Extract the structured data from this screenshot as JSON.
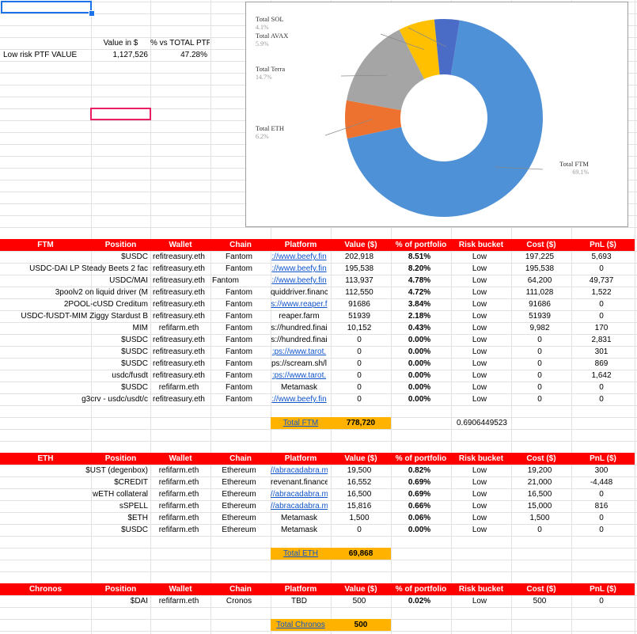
{
  "summary": {
    "value_header": "Value in $",
    "pct_header": "% vs TOTAL PTF",
    "row_label": "Low risk PTF VALUE",
    "value": "1,127,526",
    "pct": "47.28%"
  },
  "chart_data": {
    "type": "pie",
    "donut": true,
    "labels": [
      "Total FTM",
      "Total ETH",
      "Total Terra",
      "Total AVAX",
      "Total SOL"
    ],
    "values": [
      69.1,
      6.2,
      14.7,
      5.9,
      4.1
    ],
    "value_labels": [
      "69.1%",
      "6.2%",
      "14.7%",
      "5.9%",
      "4.1%"
    ],
    "colors": [
      "#4e91d6",
      "#ed7230",
      "#a5a5a5",
      "#ffc000",
      "#4a6cc7"
    ]
  },
  "headers": {
    "position": "Position",
    "wallet": "Wallet",
    "chain": "Chain",
    "platform": "Platform",
    "value": "Value ($)",
    "pct": "% of portfolio",
    "risk": "Risk bucket",
    "cost": "Cost ($)",
    "pnl": "PnL ($)"
  },
  "ftm": {
    "title": "FTM",
    "rows": [
      {
        "position": "$USDC",
        "wallet": "refitreasury.eth",
        "chain": "Fantom",
        "platform": "://www.beefy.fin",
        "link": true,
        "value": "202,918",
        "pct": "8.51%",
        "risk": "Low",
        "cost": "197,225",
        "pnl": "5,693"
      },
      {
        "position": "USDC-DAI LP Steady Beets 2 fac",
        "wallet": "refitreasury.eth",
        "chain": "Fantom",
        "platform": "://www.beefy.fin",
        "link": true,
        "value": "195,538",
        "pct": "8.20%",
        "risk": "Low",
        "cost": "195,538",
        "pnl": "0"
      },
      {
        "position": "USDC/MAI",
        "wallet": "refitreasury.eth",
        "chain": "Fantom",
        "chainLeft": true,
        "platform": "://www.beefy.fin",
        "link": true,
        "value": "113,937",
        "pct": "4.78%",
        "risk": "Low",
        "cost": "64,200",
        "pnl": "49,737"
      },
      {
        "position": "3poolv2 on liquid driver (M",
        "wallet": "refitreasury.eth",
        "chain": "Fantom",
        "platform": "quiddriver.financ",
        "link": false,
        "value": "112,550",
        "pct": "4.72%",
        "risk": "Low",
        "cost": "111,028",
        "pnl": "1,522"
      },
      {
        "position": "2POOL-cUSD Creditum",
        "wallet": "refitreasury.eth",
        "chain": "Fantom",
        "platform": "s://www.reaper.f",
        "link": true,
        "value": "91686",
        "pct": "3.84%",
        "risk": "Low",
        "cost": "91686",
        "pnl": "0"
      },
      {
        "position": "USDC-fUSDT-MIM Ziggy Stardust B",
        "wallet": "refitreasury.eth",
        "chain": "Fantom",
        "platform": "reaper.farm",
        "link": false,
        "value": "51939",
        "pct": "2.18%",
        "risk": "Low",
        "cost": "51939",
        "pnl": "0"
      },
      {
        "position": "MIM",
        "wallet": "refifarm.eth",
        "chain": "Fantom",
        "platform": "s://hundred.finai",
        "link": false,
        "value": "10,152",
        "pct": "0.43%",
        "risk": "Low",
        "cost": "9,982",
        "pnl": "170"
      },
      {
        "position": "$USDC",
        "wallet": "refitreasury.eth",
        "chain": "Fantom",
        "platform": "s://hundred.finai",
        "link": false,
        "value": "0",
        "pct": "0.00%",
        "risk": "Low",
        "cost": "0",
        "pnl": "2,831"
      },
      {
        "position": "$USDC",
        "wallet": "refitreasury.eth",
        "chain": "Fantom",
        "platform": ":ps://www.tarot.",
        "link": true,
        "value": "0",
        "pct": "0.00%",
        "risk": "Low",
        "cost": "0",
        "pnl": "301"
      },
      {
        "position": "$USDC",
        "wallet": "refitreasury.eth",
        "chain": "Fantom",
        "platform": "ps://scream.sh/l",
        "link": false,
        "value": "0",
        "pct": "0.00%",
        "risk": "Low",
        "cost": "0",
        "pnl": "869"
      },
      {
        "position": "usdc/fusdt",
        "wallet": "refitreasury.eth",
        "chain": "Fantom",
        "platform": ":ps://www.tarot.",
        "link": true,
        "value": "0",
        "pct": "0.00%",
        "risk": "Low",
        "cost": "0",
        "pnl": "1,642"
      },
      {
        "position": "$USDC",
        "wallet": "refifarm.eth",
        "chain": "Fantom",
        "platform": "Metamask",
        "link": false,
        "value": "0",
        "pct": "0.00%",
        "risk": "Low",
        "cost": "0",
        "pnl": "0"
      },
      {
        "position": "g3crv - usdc/usdt/c",
        "wallet": "refitreasury.eth",
        "chain": "Fantom",
        "platform": "://www.beefy.fin",
        "link": true,
        "value": "0",
        "pct": "0.00%",
        "risk": "Low",
        "cost": "0",
        "pnl": "0"
      }
    ],
    "total_label": "Total FTM",
    "total_value": "778,720",
    "extra": "0.6906449523"
  },
  "eth": {
    "title": "ETH",
    "rows": [
      {
        "position": "$UST (degenbox)",
        "wallet": "refifarm.eth",
        "chain": "Ethereum",
        "platform": "//abracadabra.m",
        "link": true,
        "value": "19,500",
        "pct": "0.82%",
        "risk": "Low",
        "cost": "19,200",
        "pnl": "300"
      },
      {
        "position": "$CREDIT",
        "wallet": "refifarm.eth",
        "chain": "Ethereum",
        "platform": "revenant.finance",
        "link": false,
        "value": "16,552",
        "pct": "0.69%",
        "risk": "Low",
        "cost": "21,000",
        "pnl": "-4,448"
      },
      {
        "position": "wETH collateral",
        "wallet": "refifarm.eth",
        "chain": "Ethereum",
        "platform": "//abracadabra.m",
        "link": true,
        "value": "16,500",
        "pct": "0.69%",
        "risk": "Low",
        "cost": "16,500",
        "pnl": "0"
      },
      {
        "position": "sSPELL",
        "wallet": "refifarm.eth",
        "chain": "Ethereum",
        "platform": "//abracadabra.m",
        "link": true,
        "value": "15,816",
        "pct": "0.66%",
        "risk": "Low",
        "cost": "15,000",
        "pnl": "816"
      },
      {
        "position": "$ETH",
        "wallet": "refifarm.eth",
        "chain": "Ethereum",
        "platform": "Metamask",
        "link": false,
        "value": "1,500",
        "pct": "0.06%",
        "risk": "Low",
        "cost": "1,500",
        "pnl": "0"
      },
      {
        "position": "$USDC",
        "wallet": "refifarm.eth",
        "chain": "Ethereum",
        "platform": "Metamask",
        "link": false,
        "value": "0",
        "pct": "0.00%",
        "risk": "Low",
        "cost": "0",
        "pnl": "0"
      }
    ],
    "total_label": "Total ETH",
    "total_value": "69,868"
  },
  "chronos": {
    "title": "Chronos",
    "rows": [
      {
        "position": "$DAI",
        "wallet": "refifarm.eth",
        "chain": "Cronos",
        "platform": "TBD",
        "link": false,
        "value": "500",
        "pct": "0.02%",
        "risk": "Low",
        "cost": "500",
        "pnl": "0"
      }
    ],
    "total_label": "Total Chronos",
    "total_value": "500"
  }
}
